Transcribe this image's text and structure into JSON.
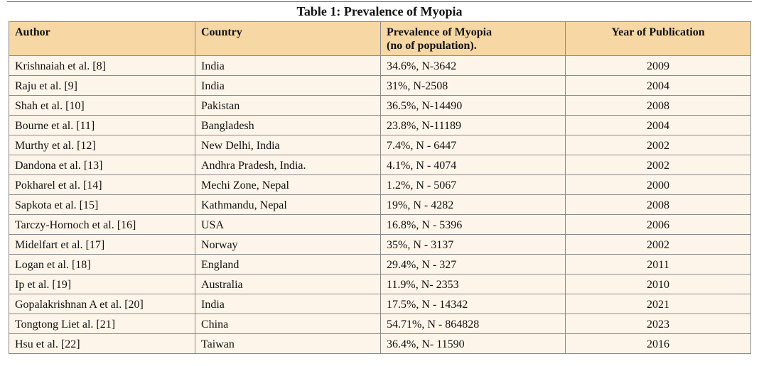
{
  "caption": "Table 1: Prevalence of Myopia",
  "table": {
    "headers": {
      "author": "Author",
      "country": "Country",
      "prevalence_line1": "Prevalence of Myopia",
      "prevalence_line2": "(no of population).",
      "year": "Year of Publication"
    },
    "rows": [
      {
        "author": "Krishnaiah et al. [8]",
        "country": "India",
        "prevalence": "34.6%, N-3642",
        "year": "2009"
      },
      {
        "author": "Raju et al. [9]",
        "country": "India",
        "prevalence": "31%, N-2508",
        "year": "2004"
      },
      {
        "author": "Shah et al. [10]",
        "country": "Pakistan",
        "prevalence": "36.5%, N-14490",
        "year": "2008"
      },
      {
        "author": "Bourne et al. [11]",
        "country": "Bangladesh",
        "prevalence": "23.8%, N-11189",
        "year": "2004"
      },
      {
        "author": "Murthy et al. [12]",
        "country": "New Delhi, India",
        "prevalence": "7.4%, N - 6447",
        "year": "2002"
      },
      {
        "author": "Dandona et al. [13]",
        "country": "Andhra Pradesh, India.",
        "prevalence": "4.1%, N - 4074",
        "year": "2002"
      },
      {
        "author": "Pokharel et al. [14]",
        "country": "Mechi Zone, Nepal",
        "prevalence": "1.2%, N - 5067",
        "year": "2000"
      },
      {
        "author": "Sapkota et al. [15]",
        "country": "Kathmandu, Nepal",
        "prevalence": "19%, N - 4282",
        "year": "2008"
      },
      {
        "author": "Tarczy-Hornoch et al. [16]",
        "country": "USA",
        "prevalence": "16.8%, N - 5396",
        "year": "2006"
      },
      {
        "author": "Midelfart et al. [17]",
        "country": "Norway",
        "prevalence": "35%, N - 3137",
        "year": "2002"
      },
      {
        "author": "Logan et al. [18]",
        "country": "England",
        "prevalence": "29.4%, N - 327",
        "year": "2011"
      },
      {
        "author": "Ip et al. [19]",
        "country": "Australia",
        "prevalence": "11.9%, N- 2353",
        "year": "2010"
      },
      {
        "author": "Gopalakrishnan A et al. [20]",
        "country": "India",
        "prevalence": "17.5%, N - 14342",
        "year": "2021"
      },
      {
        "author": "Tongtong Liet al. [21]",
        "country": "China",
        "prevalence": "54.71%, N - 864828",
        "year": "2023"
      },
      {
        "author": "Hsu et al. [22]",
        "country": "Taiwan",
        "prevalence": "36.4%, N- 11590",
        "year": "2016"
      }
    ]
  },
  "colors": {
    "header_bg": "#f7d8a4",
    "row_bg": "#fdf5e9",
    "border": "#8a8a8a"
  }
}
